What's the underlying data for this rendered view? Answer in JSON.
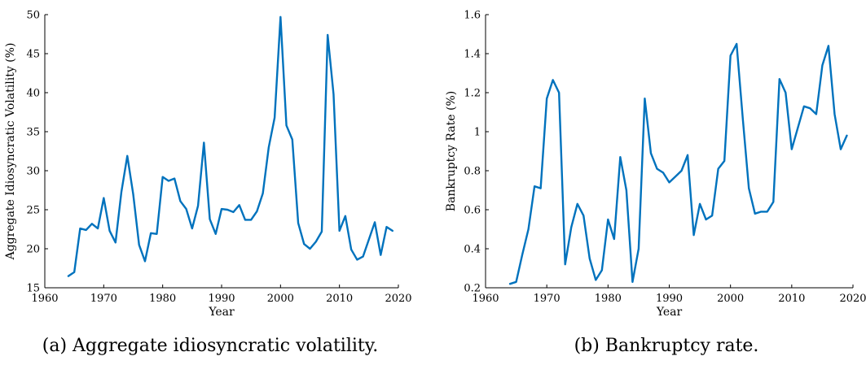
{
  "chart_data": [
    {
      "type": "line",
      "xlabel": "Year",
      "ylabel": "Aggregate Idiosyncratic Volatility (%)",
      "caption": "(a) Aggregate idiosyncratic volatility.",
      "xlim": [
        1960,
        2020
      ],
      "ylim": [
        15,
        50
      ],
      "xticks": [
        1960,
        1970,
        1980,
        1990,
        2000,
        2010,
        2020
      ],
      "yticks": [
        15,
        20,
        25,
        30,
        35,
        40,
        45,
        50
      ],
      "line_color": "#0072BD",
      "grid": false,
      "series": [
        {
          "x": [
            1964,
            1965,
            1966,
            1967,
            1968,
            1969,
            1970,
            1971,
            1972,
            1973,
            1974,
            1975,
            1976,
            1977,
            1978,
            1979,
            1980,
            1981,
            1982,
            1983,
            1984,
            1985,
            1986,
            1987,
            1988,
            1989,
            1990,
            1991,
            1992,
            1993,
            1994,
            1995,
            1996,
            1997,
            1998,
            1999,
            2000,
            2001,
            2002,
            2003,
            2004,
            2005,
            2006,
            2007,
            2008,
            2009,
            2010,
            2011,
            2012,
            2013,
            2014,
            2015,
            2016,
            2017,
            2018,
            2019
          ],
          "values": [
            16.5,
            17.0,
            22.6,
            22.4,
            23.2,
            22.6,
            26.5,
            22.3,
            20.8,
            27.3,
            31.9,
            27.0,
            20.5,
            18.4,
            22.0,
            21.9,
            29.2,
            28.7,
            29.0,
            26.1,
            25.1,
            22.6,
            25.5,
            33.6,
            23.8,
            21.9,
            25.1,
            25.0,
            24.7,
            25.6,
            23.7,
            23.7,
            24.8,
            27.1,
            33.0,
            36.8,
            49.7,
            35.8,
            34.0,
            23.3,
            20.6,
            20.0,
            20.9,
            22.2,
            47.4,
            39.8,
            22.3,
            24.2,
            19.9,
            18.6,
            19.0,
            21.2,
            23.4,
            19.2,
            22.8,
            22.3
          ]
        }
      ]
    },
    {
      "type": "line",
      "xlabel": "Year",
      "ylabel": "Bankruptcy Rate (%)",
      "caption": "(b) Bankruptcy rate.",
      "xlim": [
        1960,
        2020
      ],
      "ylim": [
        0.2,
        1.6
      ],
      "xticks": [
        1960,
        1970,
        1980,
        1990,
        2000,
        2010,
        2020
      ],
      "yticks": [
        0.2,
        0.4,
        0.6,
        0.8,
        1,
        1.2,
        1.4,
        1.6
      ],
      "line_color": "#0072BD",
      "grid": false,
      "series": [
        {
          "x": [
            1964,
            1965,
            1966,
            1967,
            1968,
            1969,
            1970,
            1971,
            1972,
            1973,
            1974,
            1975,
            1976,
            1977,
            1978,
            1979,
            1980,
            1981,
            1982,
            1983,
            1984,
            1985,
            1986,
            1987,
            1988,
            1989,
            1990,
            1991,
            1992,
            1993,
            1994,
            1995,
            1996,
            1997,
            1998,
            1999,
            2000,
            2001,
            2002,
            2003,
            2004,
            2005,
            2006,
            2007,
            2008,
            2009,
            2010,
            2011,
            2012,
            2013,
            2014,
            2015,
            2016,
            2017,
            2018,
            2019
          ],
          "values": [
            0.22,
            0.23,
            0.37,
            0.5,
            0.72,
            0.71,
            1.17,
            1.265,
            1.2,
            0.32,
            0.51,
            0.63,
            0.57,
            0.35,
            0.24,
            0.29,
            0.55,
            0.45,
            0.87,
            0.7,
            0.23,
            0.4,
            1.17,
            0.89,
            0.81,
            0.79,
            0.74,
            0.77,
            0.8,
            0.88,
            0.47,
            0.63,
            0.55,
            0.57,
            0.81,
            0.85,
            1.39,
            1.45,
            1.07,
            0.71,
            0.58,
            0.59,
            0.59,
            0.64,
            1.27,
            1.2,
            0.91,
            1.02,
            1.13,
            1.12,
            1.09,
            1.34,
            1.44,
            1.09,
            0.91,
            0.98
          ]
        }
      ]
    }
  ]
}
